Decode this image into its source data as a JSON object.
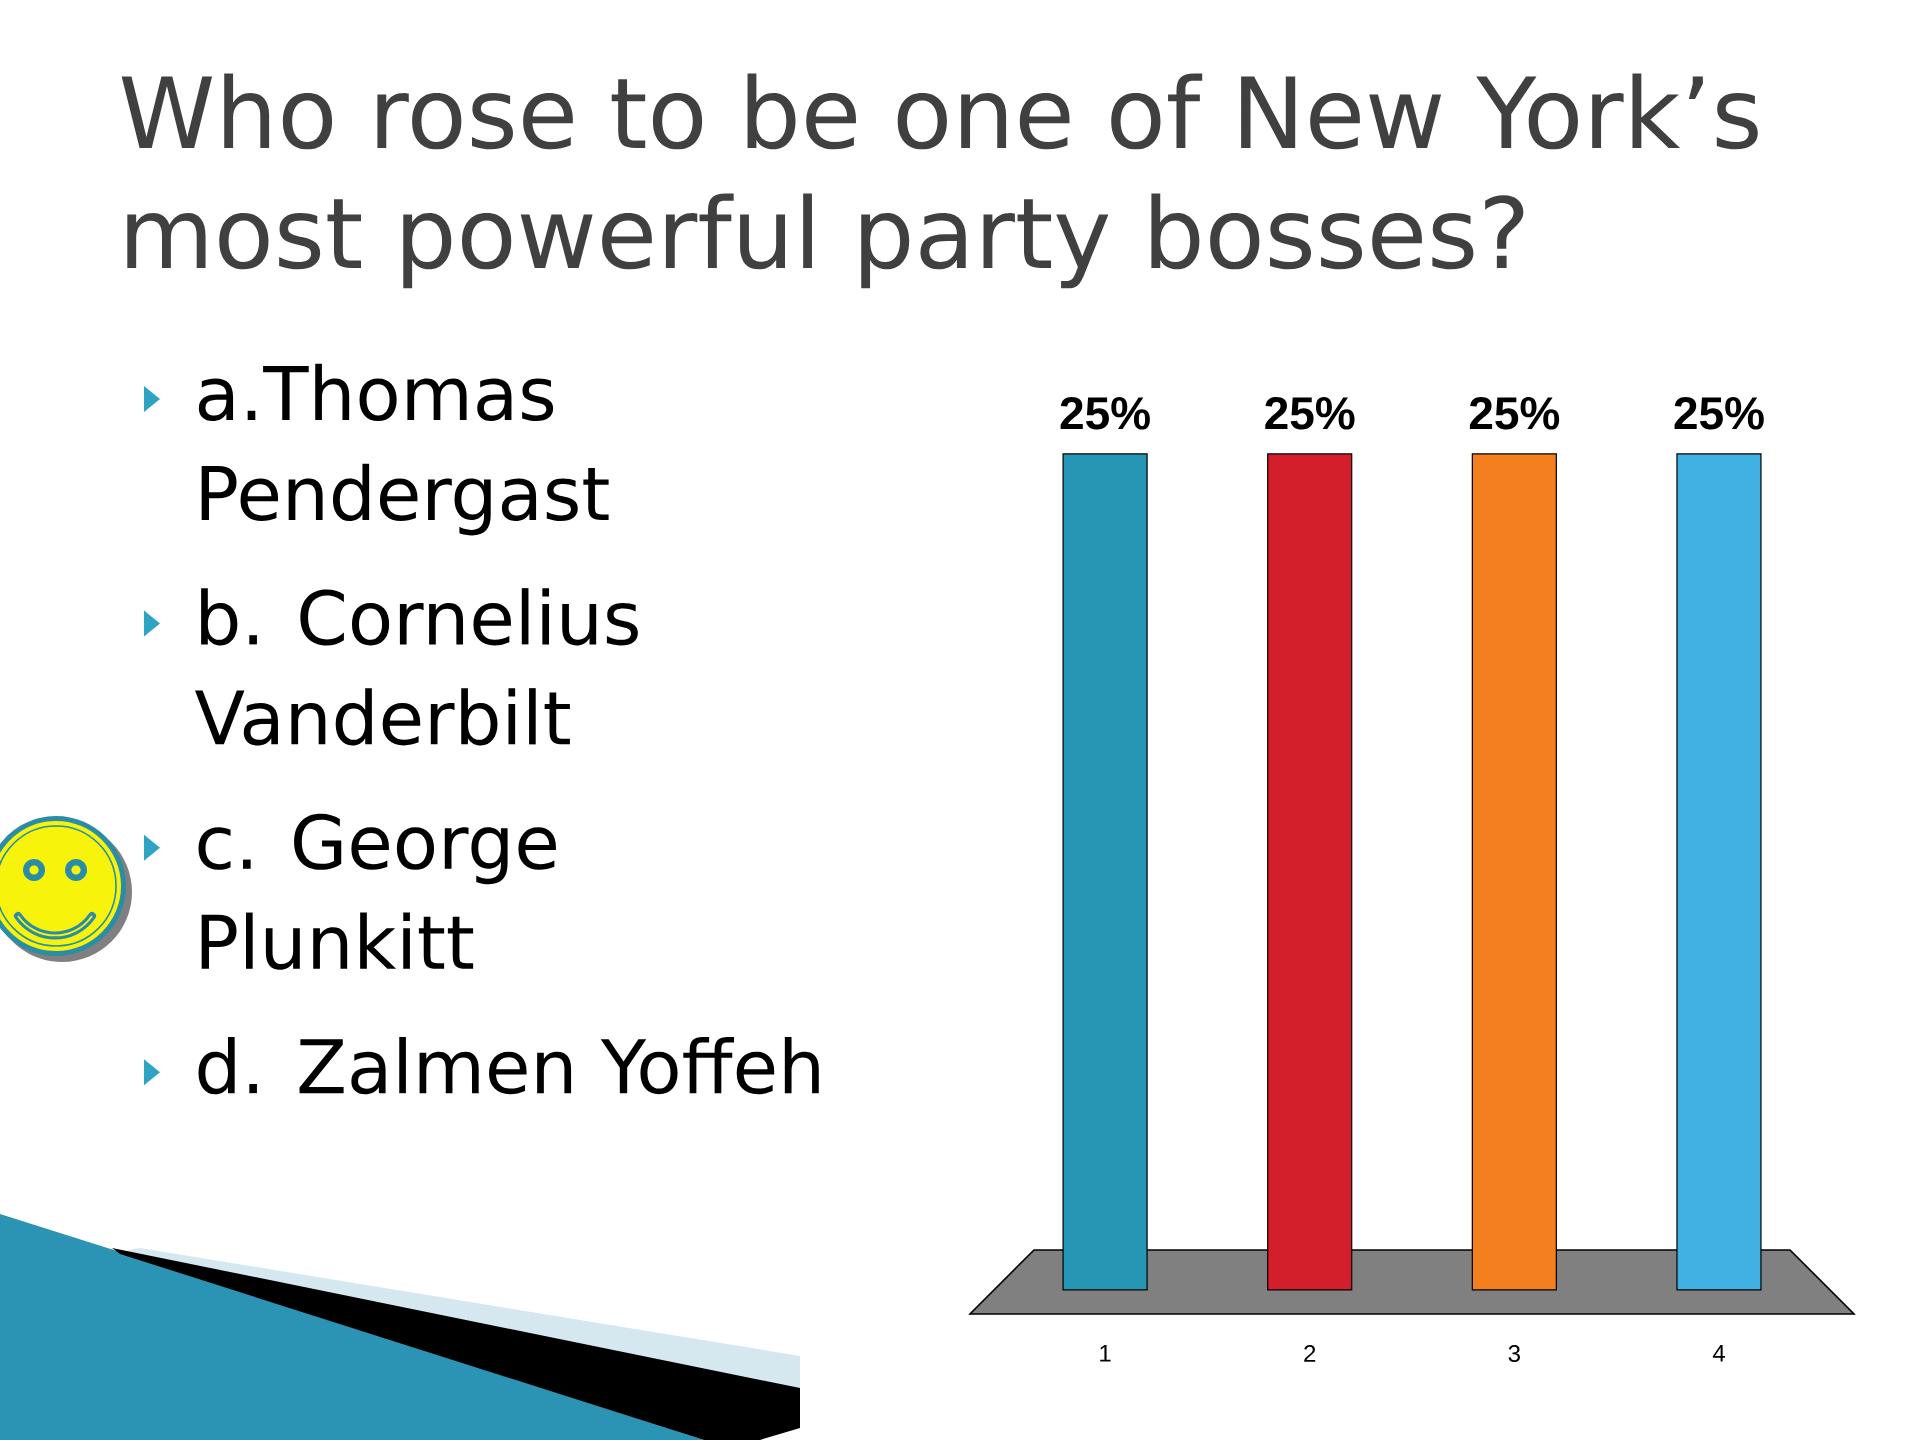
{
  "chart_data": {
    "type": "bar",
    "title": "Who rose to be one of New York’s most powerful party bosses?",
    "categories": [
      "1",
      "2",
      "3",
      "4"
    ],
    "values": [
      25,
      25,
      25,
      25
    ],
    "colors": [
      "#2596b3",
      "#d21f2b",
      "#f47f1f",
      "#41b0e2"
    ],
    "value_labels": [
      "25%",
      "25%",
      "25%",
      "25%"
    ],
    "annotations": [
      "a.Thomas Pendergast",
      "b. Cornelius Vanderbilt",
      "c. George Plunkitt",
      "d. Zalmen Yoffeh"
    ]
  }
}
